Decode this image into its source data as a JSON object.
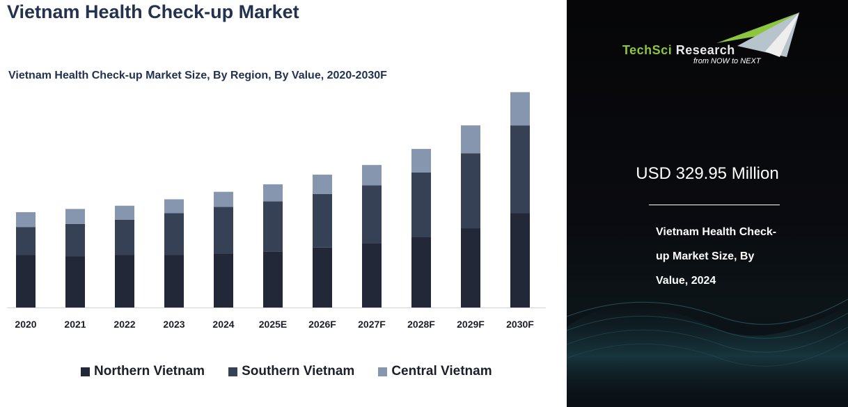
{
  "header": {
    "title": "Vietnam Health Check-up Market",
    "subtitle": "Vietnam Health Check-up Market Size, By Region, By Value, 2020-2030F"
  },
  "chart_data": {
    "type": "bar",
    "stacked": true,
    "title": "Vietnam Health Check-up Market Size, By Region, By Value, 2020-2030F",
    "xlabel": "",
    "ylabel": "",
    "ylim": [
      0,
      100
    ],
    "grid": false,
    "legend_position": "bottom",
    "categories": [
      "2020",
      "2021",
      "2022",
      "2023",
      "2024",
      "2025E",
      "2026F",
      "2027F",
      "2028F",
      "2029F",
      "2030F"
    ],
    "series": [
      {
        "name": "Northern Vietnam",
        "color": "#222838",
        "values": [
          24.5,
          24,
          24.5,
          24.5,
          25,
          26,
          28,
          30,
          33,
          37,
          44
        ]
      },
      {
        "name": "Southern Vietnam",
        "color": "#364156",
        "values": [
          13,
          15,
          16.5,
          19.5,
          22,
          23.5,
          25,
          27,
          30,
          35,
          41
        ]
      },
      {
        "name": "Central Vietnam",
        "color": "#8596ae",
        "values": [
          7,
          7,
          6.5,
          6.5,
          7,
          8,
          9,
          9.5,
          11,
          13,
          15.5
        ]
      }
    ]
  },
  "sidebar": {
    "logo": {
      "name_a": "TechSci",
      "name_b": " Research",
      "tagline": "from NOW to NEXT"
    },
    "value": "USD 329.95 Million",
    "description_lines": [
      "Vietnam Health Check-",
      "up Market Size, By",
      "Value, 2024"
    ]
  }
}
